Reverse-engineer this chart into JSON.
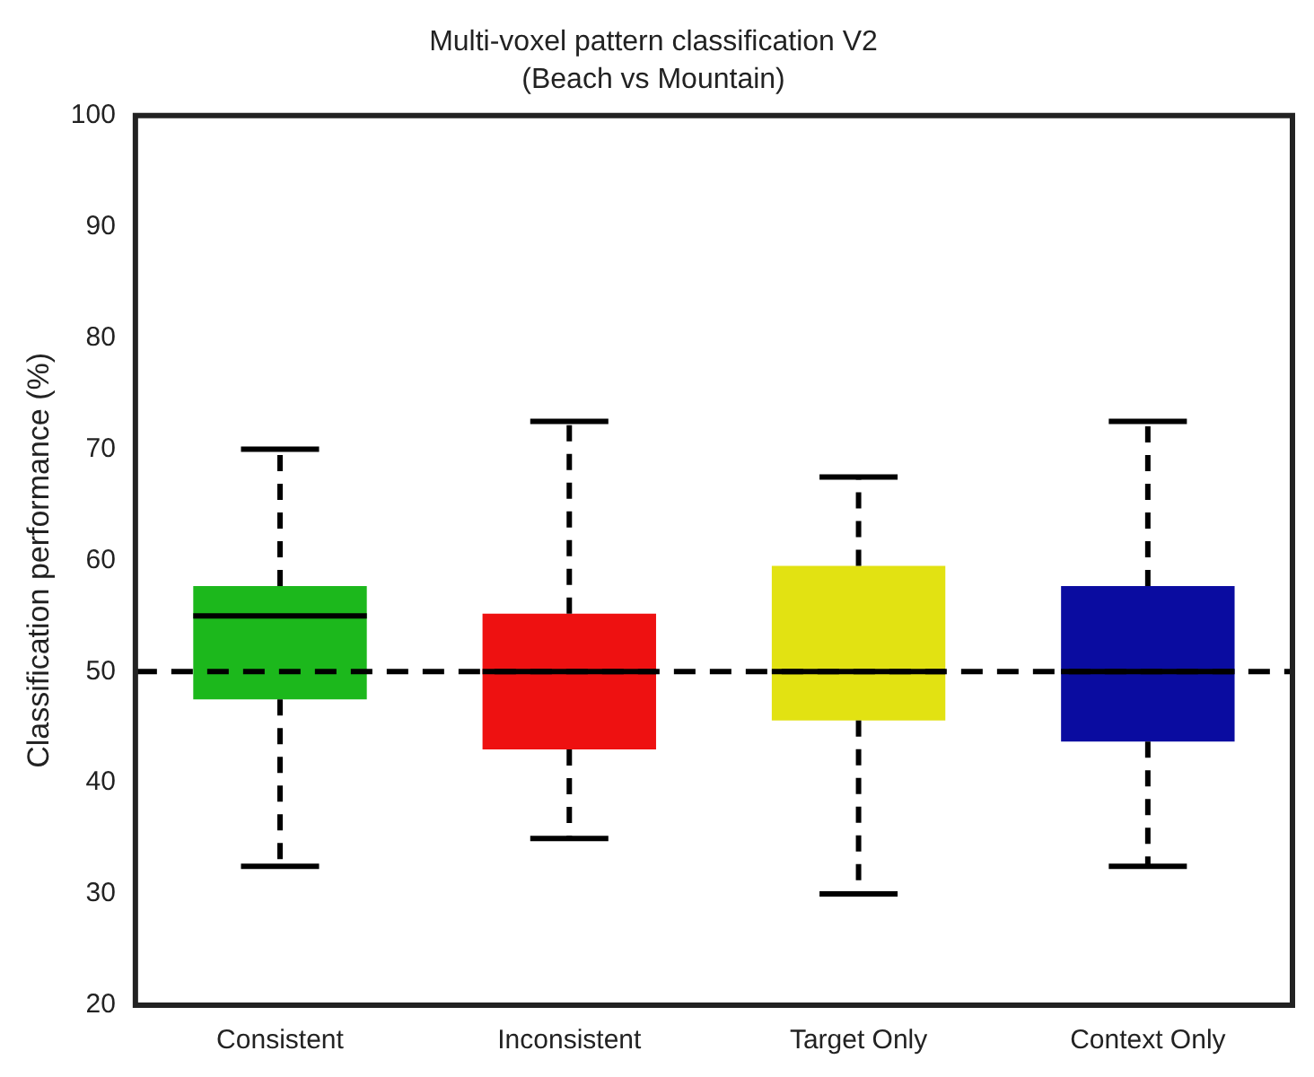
{
  "chart_data": {
    "type": "box",
    "title": "Multi-voxel pattern classification V2",
    "subtitle": "(Beach vs Mountain)",
    "ylabel": "Classification performance (%)",
    "categories": [
      "Consistent",
      "Inconsistent",
      "Target Only",
      "Context Only"
    ],
    "boxes": [
      {
        "low": 32.5,
        "q1": 47.5,
        "median": 55,
        "q3": 57.7,
        "high": 70
      },
      {
        "low": 35,
        "q1": 43,
        "median": 50,
        "q3": 55.2,
        "high": 72.5
      },
      {
        "low": 30,
        "q1": 45.6,
        "median": 50,
        "q3": 59.5,
        "high": 67.5
      },
      {
        "low": 32.5,
        "q1": 43.7,
        "median": 50,
        "q3": 57.7,
        "high": 72.5
      }
    ],
    "colors": [
      "#1cb81c",
      "#ee1111",
      "#e2e212",
      "#0a0ca0"
    ],
    "ylim": [
      20,
      100
    ],
    "yticks": [
      20,
      30,
      40,
      50,
      60,
      70,
      80,
      90,
      100
    ],
    "ref_lines": [
      {
        "axis": "y",
        "value": 50,
        "color": "#000000",
        "line_style": "dashed"
      }
    ]
  }
}
